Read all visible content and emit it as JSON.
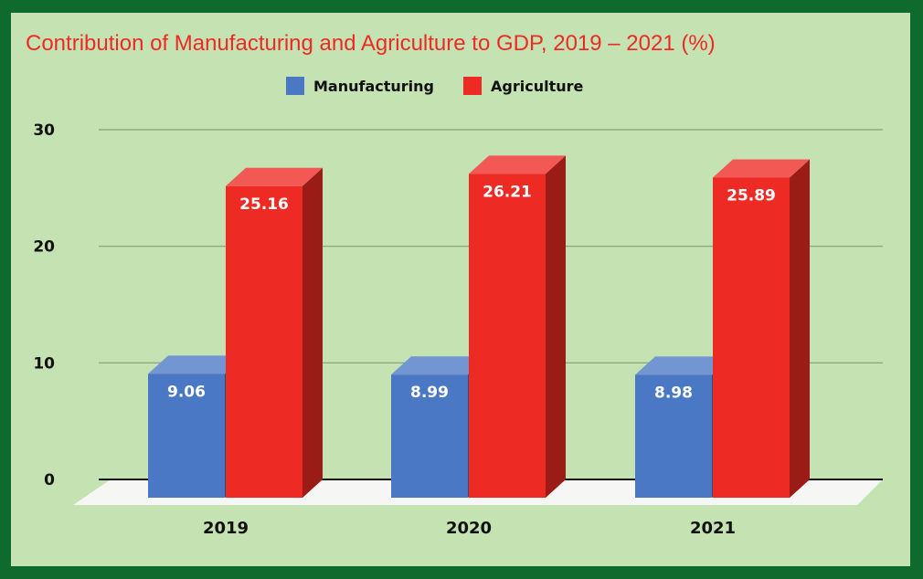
{
  "chart_data": {
    "type": "bar",
    "title": "Contribution of Manufacturing and Agriculture to GDP, 2019 – 2021 (%)",
    "categories": [
      "2019",
      "2020",
      "2021"
    ],
    "series": [
      {
        "name": "Manufacturing",
        "values": [
          9.06,
          8.99,
          8.98
        ],
        "labels": [
          "9.06",
          "8.99",
          "8.98"
        ],
        "color": "#4a78c4"
      },
      {
        "name": "Agriculture",
        "values": [
          25.16,
          26.21,
          25.89
        ],
        "labels": [
          "25.16",
          "26.21",
          "25.89"
        ],
        "color": "#ee2a24"
      }
    ],
    "yticks": [
      "0",
      "10",
      "20",
      "30"
    ],
    "ylim": [
      0,
      30
    ],
    "grid": true,
    "legend": "top-center",
    "style": "3d-bar"
  }
}
